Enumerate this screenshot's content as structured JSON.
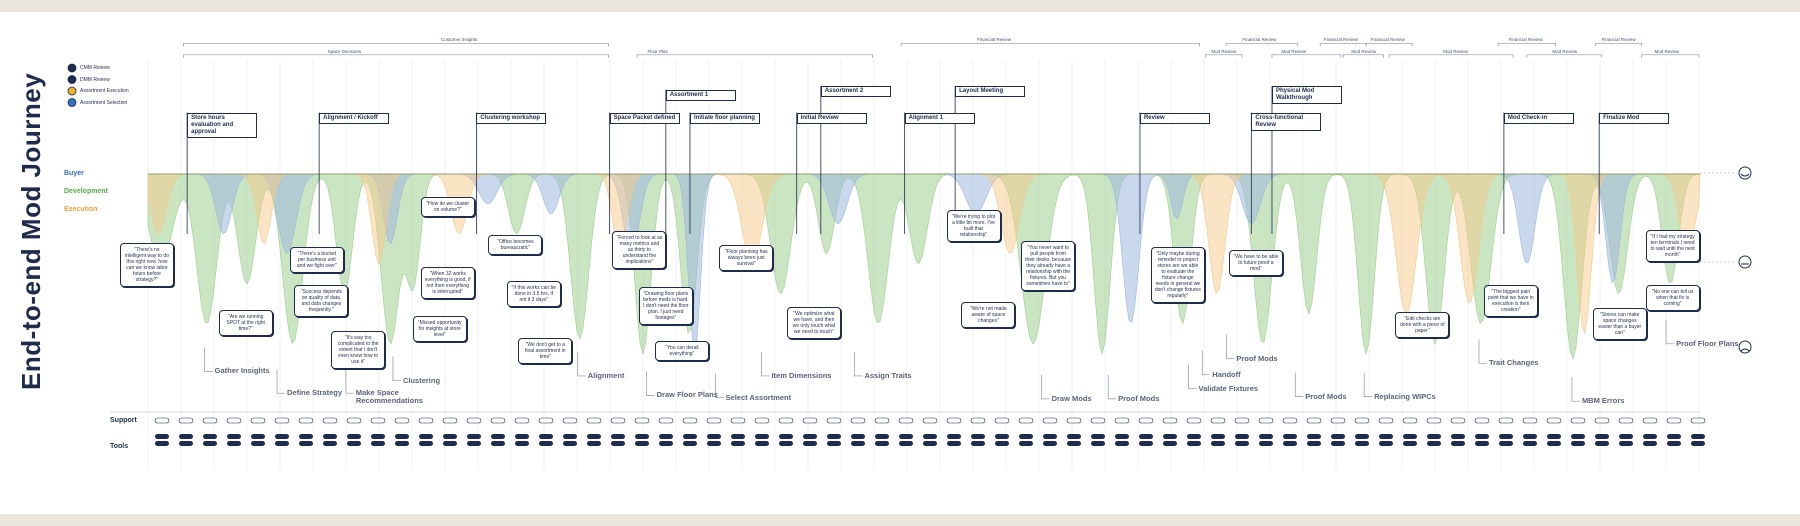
{
  "header": {
    "title": "End-to-end Mod Journey"
  },
  "legend": [
    "CMM Review",
    "DMM Review",
    "Assortment Execution",
    "Assortment Selection"
  ],
  "lanes": [
    "Buyer",
    "Development",
    "Execution"
  ],
  "brackets": [
    "Customer Insights",
    "Space Decisions",
    "Floor Plan",
    "Financial Review",
    "Mod Review",
    "Financial Review",
    "Mod Review",
    "Financial Review",
    "Mod Review",
    "Financial Review",
    "Mod Review",
    "Financial Review",
    "Mod Review",
    "Financial Review",
    "Mod Review"
  ],
  "milestones": [
    "Store hours evaluation and approval",
    "Alignment / Kickoff",
    "Clustering workshop",
    "Space Packet defined",
    "Assortment 1",
    "Initiate floor planning",
    "Initial Review",
    "Assortment 2",
    "Alignment 1",
    "Layout Meeting",
    "Review",
    "Physical Mod Walkthrough",
    "Cross-functional Review",
    "Mod Check-in",
    "Finalize Mod"
  ],
  "stages": [
    "Gather Insights",
    "Define Strategy",
    "Make Space Recommendations",
    "Clustering",
    "Alignment",
    "Draw Floor Plans",
    "Select Assortment",
    "Item Dimensions",
    "Assign Traits",
    "Draw Mods",
    "Proof Mods",
    "Validate Fixtures",
    "Handoff",
    "Proof Mods",
    "Proof Mods",
    "Replacing WIPCs",
    "Trait Changes",
    "MBM Errors",
    "Proof Floor Plans"
  ],
  "quotes": [
    "\"There's no intelligent way to do this right now. how can we know labor hours before strategy?\"",
    "\"Are we running SPOT at the right time?\"",
    "\"There's a bucket per business unit and we fight over\"",
    "\"Success depends on quality of data, and data changes frequently.\"",
    "\"It's way too complicated to the extent that I don't even know how to use it\"",
    "\"How do we cluster on volume?\"",
    "\"When 32 works everything is good, if not then everything is interrupted\"",
    "\"Missed opportunity for insights at store level\"",
    "\"Office becomes bureaucratic\"",
    "\"If this works can be done in 3.5 hrs, if not it 3 days\"",
    "\"We don't get to a final assortment in time\"",
    "\"Forced to look at as many metrics and as thirty to understand the implications\"",
    "\"Drawing floor plans before mods is hard. I don't need the floor plan. I just need footages\"",
    "\"You can derail everything\"",
    "\"Floor planning has always been just survival\"",
    "\"We optimize what we have, and then we only touch what we need to touch\"",
    "\"We're trying to plot a little bit more, I've built that relationship\"",
    "\"We're not made aware of space changes\"",
    "\"You never want to pull people from their desks, because they already have a relationship with the fixtures. But you sometimes have to\"",
    "\"Only maybe during remodel or project stores are we able to evaluate the fixture change needs in general we don't change fixtures regularly\"",
    "\"We have to be able to future proof a mod\"",
    "\"Edit checks are done with a piece of paper\"",
    "\"The biggest pain point that we have in execution is item creation\"",
    "\"If I had my strategy ten terminals I need to wait until the next month\"",
    "\"Stores can make space changes easier than a buyer can\"",
    "\"No one can tell us when that fix is coming\""
  ],
  "rows": [
    "Support",
    "Tools"
  ]
}
